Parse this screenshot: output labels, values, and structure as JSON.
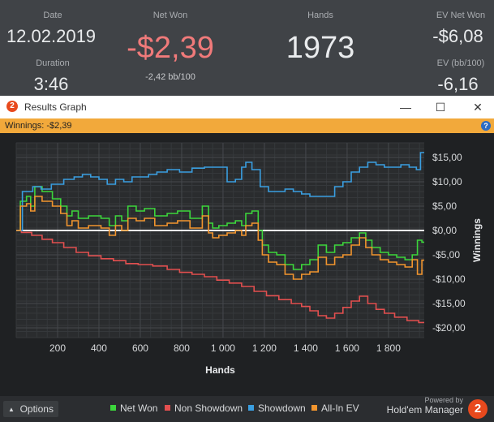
{
  "stats": {
    "date_label": "Date",
    "date_value": "12.02.2019",
    "net_won_label": "Net Won",
    "net_won_value": "-$2,39",
    "net_won_sub": "-2,42 bb/100",
    "hands_label": "Hands",
    "hands_value": "1973",
    "ev_net_won_label": "EV Net Won",
    "ev_net_won_value": "-$6,08",
    "duration_label": "Duration",
    "duration_value": "3:46",
    "ev_bb_label": "EV (bb/100)",
    "ev_bb_value": "-6,16"
  },
  "window": {
    "title": "Results Graph",
    "winnings_text": "Winnings: -$2,39",
    "options_label": "Options",
    "brand_top": "Powered by",
    "brand": "Hold'em Manager",
    "brand_badge": "2",
    "logo_badge": "2",
    "help": "?"
  },
  "colors": {
    "net_won": "#3cd63c",
    "non_showdown": "#e24f4f",
    "showdown": "#3a9ee0",
    "all_in_ev": "#f2952e",
    "accent": "#f2a93b",
    "net_won_text": "#f07a7a"
  },
  "chart_data": {
    "type": "line",
    "title": "Results Graph",
    "xlabel": "Hands",
    "ylabel": "Winnings",
    "xlim": [
      0,
      1973
    ],
    "ylim": [
      -22,
      18
    ],
    "x_ticks": [
      200,
      400,
      600,
      800,
      1000,
      1200,
      1400,
      1600,
      1800
    ],
    "x_tick_labels": [
      "200",
      "400",
      "600",
      "800",
      "1 000",
      "1 200",
      "1 400",
      "1 600",
      "1 800"
    ],
    "y_ticks": [
      15,
      10,
      5,
      0,
      -5,
      -10,
      -15,
      -20
    ],
    "y_tick_labels": [
      "$15,00",
      "$10,00",
      "$5,00",
      "$0,00",
      "-$5,00",
      "-$10,00",
      "-$15,00",
      "-$20,00"
    ],
    "grid": true,
    "legend": "bottom",
    "series": [
      {
        "name": "Net Won",
        "color": "#3cd63c",
        "x": [
          0,
          40,
          60,
          80,
          100,
          150,
          200,
          230,
          260,
          280,
          320,
          380,
          440,
          460,
          500,
          520,
          560,
          600,
          640,
          700,
          760,
          800,
          880,
          920,
          940,
          960,
          1000,
          1040,
          1080,
          1100,
          1120,
          1160,
          1180,
          1200,
          1240,
          1280,
          1320,
          1360,
          1400,
          1440,
          1480,
          1520,
          1560,
          1600,
          1640,
          1680,
          1700,
          1740,
          1780,
          1820,
          1860,
          1900,
          1930,
          1950,
          1973
        ],
        "values": [
          0,
          6,
          7,
          5,
          9,
          8,
          6.5,
          5,
          3,
          4,
          2.5,
          3,
          2.5,
          1,
          3,
          2,
          5,
          4,
          4.5,
          3,
          3.5,
          4,
          2.5,
          5,
          1.5,
          0.5,
          1,
          1.5,
          2,
          1,
          3.5,
          4,
          0,
          -3,
          -4.5,
          -5,
          -7,
          -8,
          -7,
          -6,
          -3,
          -4.5,
          -3,
          -2.5,
          -1.5,
          -0.5,
          -2,
          -3.5,
          -4.5,
          -5,
          -5.5,
          -6,
          -5,
          -2,
          -2.4
        ]
      },
      {
        "name": "Non Showdown",
        "color": "#e24f4f",
        "x": [
          0,
          50,
          100,
          150,
          200,
          260,
          320,
          380,
          440,
          500,
          560,
          620,
          700,
          760,
          820,
          880,
          940,
          1000,
          1060,
          1120,
          1180,
          1240,
          1300,
          1360,
          1400,
          1440,
          1480,
          1520,
          1560,
          1600,
          1640,
          1680,
          1720,
          1760,
          1800,
          1860,
          1920,
          1973
        ],
        "values": [
          0,
          -0.4,
          -1,
          -1.8,
          -2.5,
          -3.5,
          -4.5,
          -5.2,
          -5.8,
          -6.2,
          -6.8,
          -7,
          -7.3,
          -8,
          -8.6,
          -9,
          -9.5,
          -10.2,
          -10.8,
          -11.5,
          -12.5,
          -13.4,
          -14.2,
          -15,
          -15.6,
          -16.5,
          -17.5,
          -18,
          -17,
          -15.8,
          -14.5,
          -13.5,
          -15,
          -16.2,
          -17,
          -17.8,
          -18.5,
          -18.9
        ]
      },
      {
        "name": "Showdown",
        "color": "#3a9ee0",
        "x": [
          0,
          60,
          100,
          140,
          200,
          260,
          300,
          340,
          380,
          420,
          460,
          500,
          540,
          580,
          620,
          660,
          700,
          760,
          820,
          880,
          940,
          1000,
          1040,
          1080,
          1100,
          1120,
          1160,
          1200,
          1240,
          1280,
          1320,
          1360,
          1400,
          1440,
          1480,
          1520,
          1560,
          1600,
          1640,
          1680,
          1720,
          1760,
          1800,
          1840,
          1880,
          1920,
          1950,
          1960,
          1973
        ],
        "values": [
          0,
          8,
          9,
          8.5,
          9.5,
          10.5,
          11,
          11.5,
          11,
          10.5,
          9.5,
          10.5,
          10,
          11,
          11,
          11.5,
          12,
          12.5,
          12,
          12.8,
          13,
          13,
          10,
          10.5,
          13,
          14,
          12.5,
          9,
          8,
          8,
          8.5,
          8,
          7.5,
          7,
          7,
          7,
          9,
          10,
          12,
          13,
          14,
          13.5,
          13,
          13,
          13.5,
          13,
          12.5,
          16,
          16
        ]
      },
      {
        "name": "All-In EV",
        "color": "#f2952e",
        "x": [
          0,
          40,
          60,
          80,
          100,
          150,
          200,
          230,
          260,
          280,
          320,
          380,
          440,
          460,
          500,
          520,
          560,
          600,
          640,
          700,
          760,
          800,
          880,
          920,
          940,
          960,
          1000,
          1040,
          1080,
          1100,
          1120,
          1160,
          1180,
          1200,
          1240,
          1280,
          1320,
          1360,
          1400,
          1440,
          1480,
          1520,
          1560,
          1600,
          1640,
          1680,
          1700,
          1740,
          1780,
          1820,
          1860,
          1900,
          1930,
          1950,
          1973
        ],
        "values": [
          0,
          5,
          5.5,
          4,
          7,
          6,
          5,
          3.5,
          1,
          2,
          0.5,
          1,
          0.5,
          -1,
          1,
          0,
          2.5,
          2,
          2.5,
          1,
          1.5,
          2,
          0.5,
          3,
          -0.5,
          -1.5,
          -1,
          -0.5,
          0,
          -1,
          1,
          1.5,
          -2,
          -5,
          -6.5,
          -7,
          -9,
          -10,
          -9,
          -8.5,
          -5.5,
          -7,
          -5.5,
          -5,
          -3,
          -1.5,
          -3.5,
          -5,
          -6,
          -6.5,
          -7,
          -7.5,
          -6,
          -9,
          -6.1
        ]
      }
    ]
  }
}
